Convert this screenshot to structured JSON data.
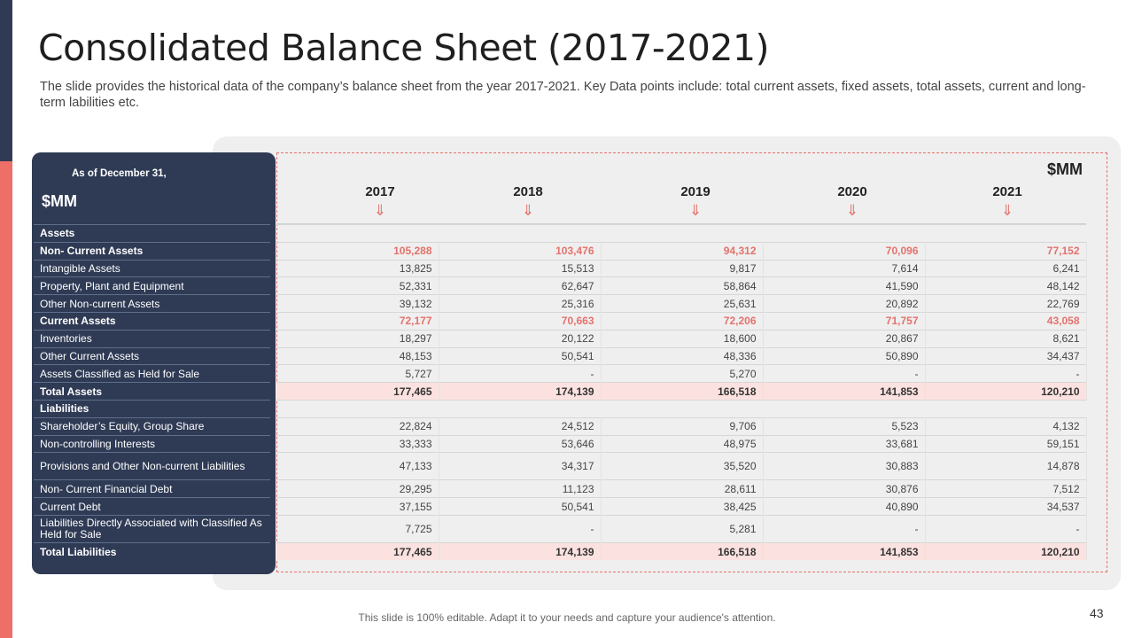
{
  "slide": {
    "title": "Consolidated Balance Sheet (2017-2021)",
    "subtitle": "The slide provides the historical data of the company’s balance sheet from the year 2017-2021. Key Data points include: total current assets, fixed assets, total assets, current and long-term labilities etc.",
    "footnote": "This slide is 100% editable. Adapt it to your needs and capture your audience's attention.",
    "page_number": "43"
  },
  "table": {
    "as_of": "As of December 31,",
    "unit_left": "$MM",
    "unit_right": "$MM",
    "arrow_glyph": "⇓",
    "years": [
      "2017",
      "2018",
      "2019",
      "2020",
      "2021"
    ],
    "accent_color": "#e4726c",
    "navy_color": "#2f3b55",
    "rows": [
      {
        "label": "Assets",
        "values": [
          "",
          "",
          "",
          "",
          ""
        ],
        "type": "section"
      },
      {
        "label": "Non- Current Assets",
        "values": [
          "105,288",
          "103,476",
          "94,312",
          "70,096",
          "77,152"
        ],
        "type": "subtotal"
      },
      {
        "label": "Intangible Assets",
        "values": [
          "13,825",
          "15,513",
          "9,817",
          "7,614",
          "6,241"
        ],
        "type": "normal"
      },
      {
        "label": "Property, Plant and Equipment",
        "values": [
          "52,331",
          "62,647",
          "58,864",
          "41,590",
          "48,142"
        ],
        "type": "normal"
      },
      {
        "label": "Other Non-current Assets",
        "values": [
          "39,132",
          "25,316",
          "25,631",
          "20,892",
          "22,769"
        ],
        "type": "normal"
      },
      {
        "label": "Current Assets",
        "values": [
          "72,177",
          "70,663",
          "72,206",
          "71,757",
          "43,058"
        ],
        "type": "subtotal"
      },
      {
        "label": "Inventories",
        "values": [
          "18,297",
          "20,122",
          "18,600",
          "20,867",
          "8,621"
        ],
        "type": "normal"
      },
      {
        "label": "Other Current Assets",
        "values": [
          "48,153",
          "50,541",
          "48,336",
          "50,890",
          "34,437"
        ],
        "type": "normal"
      },
      {
        "label": "Assets Classified as Held for Sale",
        "values": [
          "5,727",
          "-",
          "5,270",
          "-",
          "-"
        ],
        "type": "normal"
      },
      {
        "label": "Total Assets",
        "values": [
          "177,465",
          "174,139",
          "166,518",
          "141,853",
          "120,210"
        ],
        "type": "total"
      },
      {
        "label": "Liabilities",
        "values": [
          "",
          "",
          "",
          "",
          ""
        ],
        "type": "section"
      },
      {
        "label": "Shareholder’s Equity, Group Share",
        "values": [
          "22,824",
          "24,512",
          "9,706",
          "5,523",
          "4,132"
        ],
        "type": "normal"
      },
      {
        "label": "Non-controlling Interests",
        "values": [
          "33,333",
          "53,646",
          "48,975",
          "33,681",
          "59,151"
        ],
        "type": "normal"
      },
      {
        "label": "Provisions and Other Non-current Liabilities",
        "values": [
          "47,133",
          "34,317",
          "35,520",
          "30,883",
          "14,878"
        ],
        "type": "normal",
        "tall": true
      },
      {
        "label": "Non- Current Financial Debt",
        "values": [
          "29,295",
          "11,123",
          "28,611",
          "30,876",
          "7,512"
        ],
        "type": "normal"
      },
      {
        "label": "Current Debt",
        "values": [
          "37,155",
          "50,541",
          "38,425",
          "40,890",
          "34,537"
        ],
        "type": "normal"
      },
      {
        "label": "Liabilities Directly Associated with Classified As Held for Sale",
        "values": [
          "7,725",
          "-",
          "5,281",
          "-",
          "-"
        ],
        "type": "normal",
        "tall": true
      },
      {
        "label": "Total Liabilities",
        "values": [
          "177,465",
          "174,139",
          "166,518",
          "141,853",
          "120,210"
        ],
        "type": "total"
      }
    ]
  }
}
